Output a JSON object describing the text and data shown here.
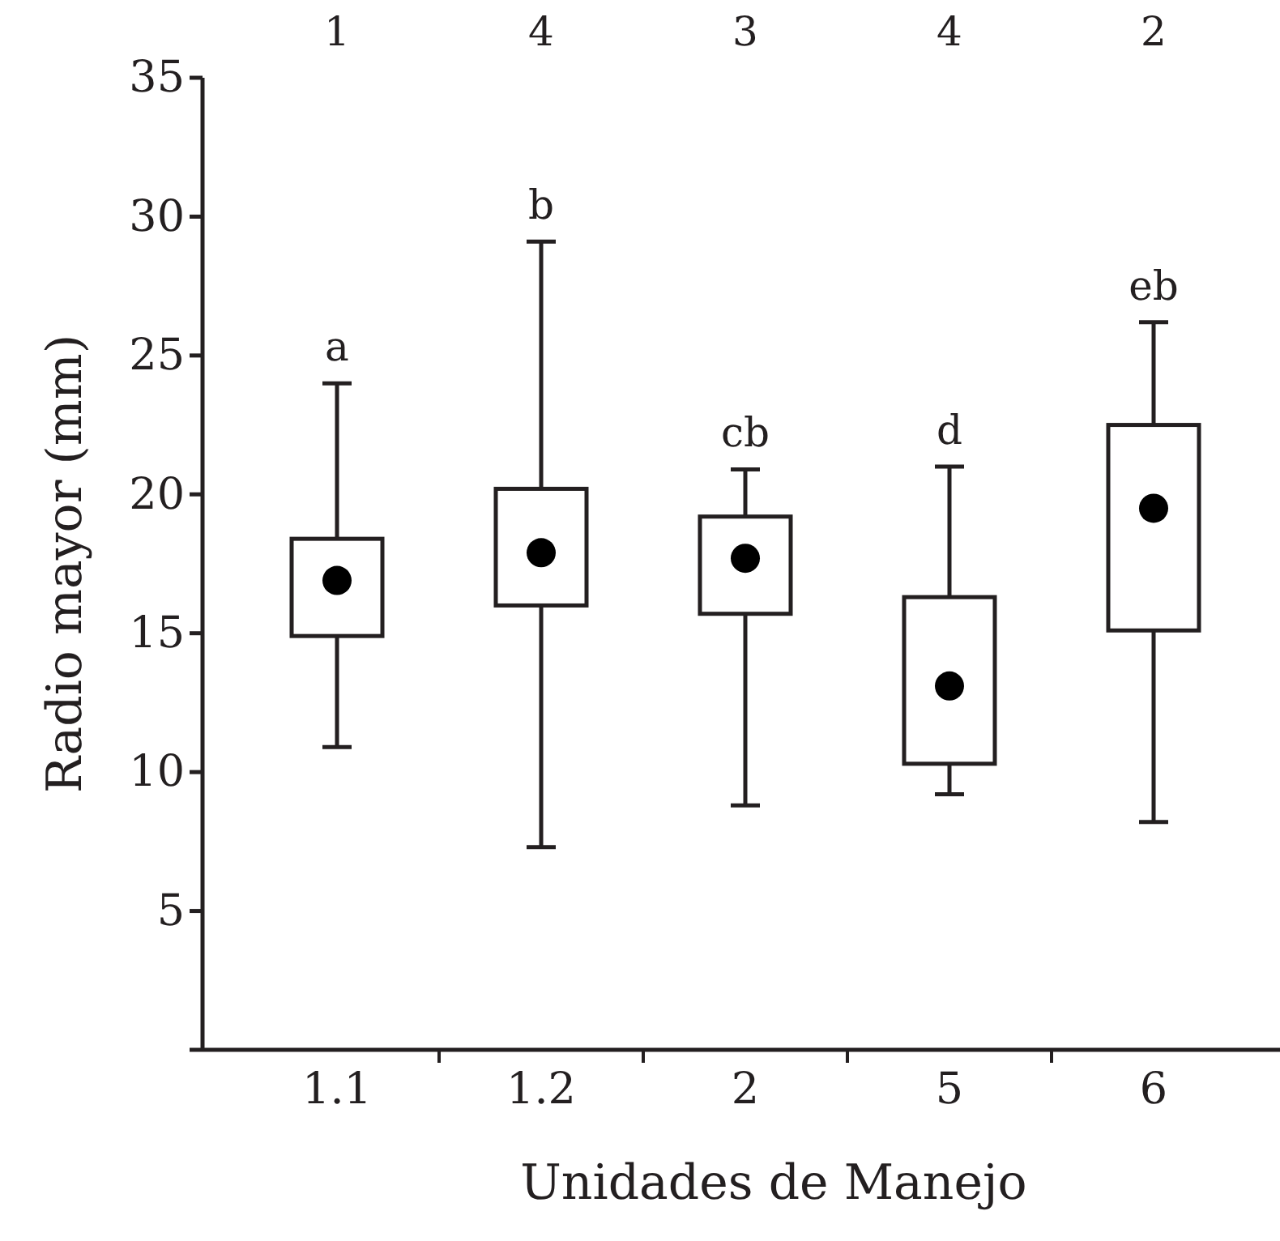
{
  "chart_data": {
    "type": "box",
    "xlabel": "Unidades de Manejo",
    "ylabel": "Radio mayor (mm)",
    "categories": [
      "1.1",
      "1.2",
      "2",
      "5",
      "6"
    ],
    "boxes": [
      {
        "low": 10.9,
        "q1": 14.9,
        "median": 16.9,
        "q3": 18.4,
        "high": 24.0
      },
      {
        "low": 7.3,
        "q1": 16.0,
        "median": 17.9,
        "q3": 20.2,
        "high": 29.1
      },
      {
        "low": 8.8,
        "q1": 15.7,
        "median": 17.7,
        "q3": 19.2,
        "high": 20.9
      },
      {
        "low": 9.2,
        "q1": 10.3,
        "median": 13.1,
        "q3": 16.3,
        "high": 21.0
      },
      {
        "low": 8.2,
        "q1": 15.1,
        "median": 19.5,
        "q3": 22.5,
        "high": 26.2
      }
    ],
    "color": "#231f20",
    "ylim": [
      0,
      35
    ],
    "yticks": [
      {
        "value": 0,
        "label": null
      },
      5,
      10,
      15,
      20,
      25,
      30,
      35
    ],
    "grid": false,
    "annotations": [
      "a",
      "b",
      "cb",
      "d",
      "eb",
      "1",
      "4",
      "3",
      "4",
      "2"
    ]
  }
}
